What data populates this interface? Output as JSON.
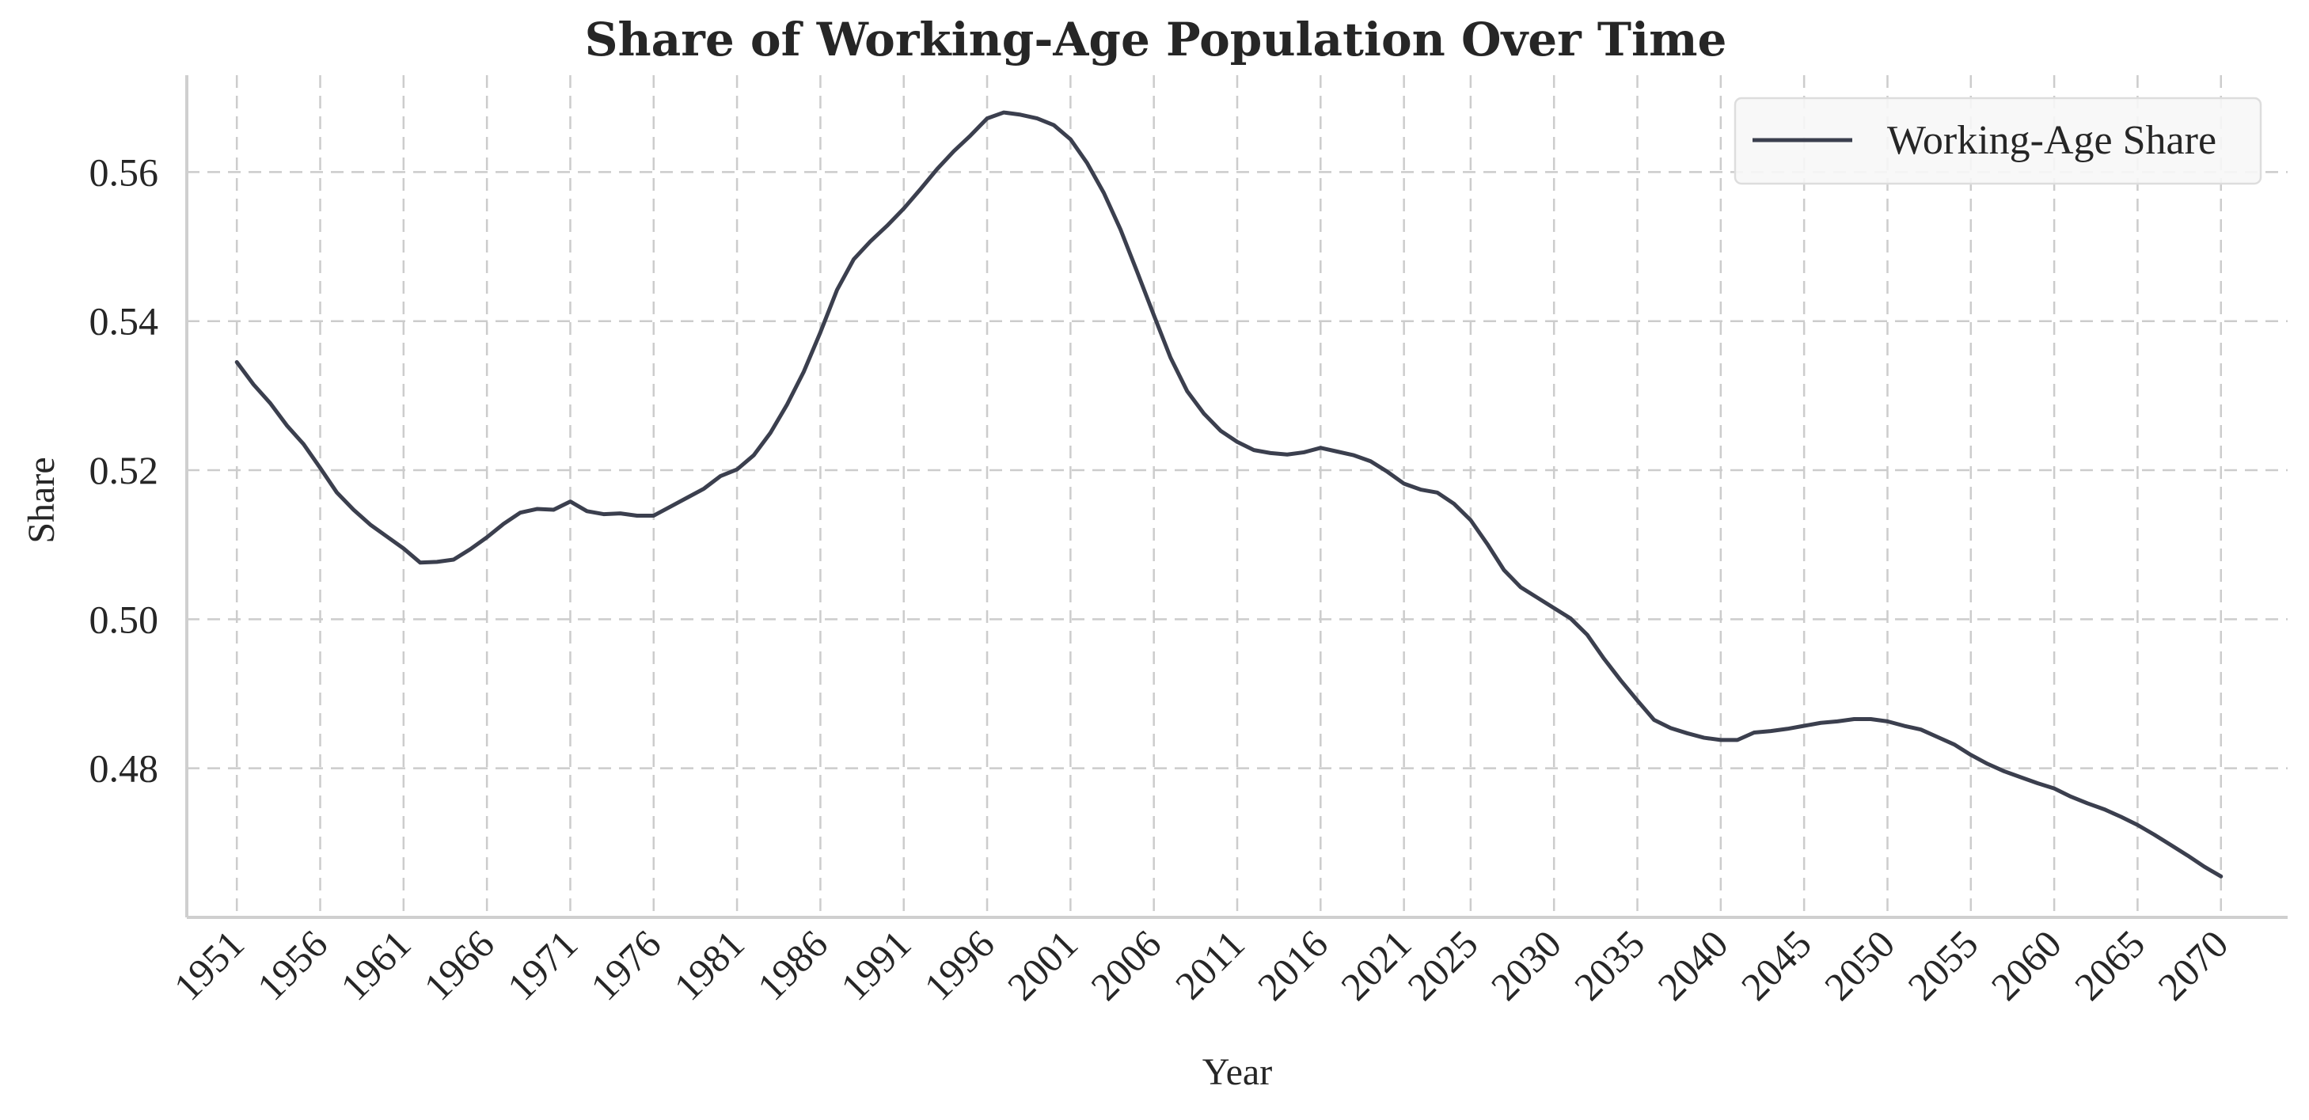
{
  "chart_data": {
    "type": "line",
    "title": "Share of Working-Age Population Over Time",
    "xlabel": "Year",
    "ylabel": "Share",
    "xlim": [
      1948,
      2074
    ],
    "ylim": [
      0.46,
      0.573
    ],
    "grid": true,
    "legend": {
      "position": "top-right"
    },
    "xticks": [
      1951,
      1956,
      1961,
      1966,
      1971,
      1976,
      1981,
      1986,
      1991,
      1996,
      2001,
      2006,
      2011,
      2016,
      2021,
      2025,
      2030,
      2035,
      2040,
      2045,
      2050,
      2055,
      2060,
      2065,
      2070
    ],
    "yticks": [
      0.48,
      0.5,
      0.52,
      0.54,
      0.56
    ],
    "ytick_labels": [
      "0.48",
      "0.50",
      "0.52",
      "0.54",
      "0.56"
    ],
    "series": [
      {
        "name": "Working-Age Share",
        "color": "#3b3f4e",
        "x": [
          1951,
          1952,
          1953,
          1954,
          1955,
          1956,
          1957,
          1958,
          1959,
          1960,
          1961,
          1962,
          1963,
          1964,
          1965,
          1966,
          1967,
          1968,
          1969,
          1970,
          1971,
          1972,
          1973,
          1974,
          1975,
          1976,
          1977,
          1978,
          1979,
          1980,
          1981,
          1982,
          1983,
          1984,
          1985,
          1986,
          1987,
          1988,
          1989,
          1990,
          1991,
          1992,
          1993,
          1994,
          1995,
          1996,
          1997,
          1998,
          1999,
          2000,
          2001,
          2002,
          2003,
          2004,
          2005,
          2006,
          2007,
          2008,
          2009,
          2010,
          2011,
          2012,
          2013,
          2014,
          2015,
          2016,
          2017,
          2018,
          2019,
          2020,
          2021,
          2022,
          2023,
          2024,
          2025,
          2026,
          2027,
          2028,
          2029,
          2030,
          2031,
          2032,
          2033,
          2034,
          2035,
          2036,
          2037,
          2038,
          2039,
          2040,
          2041,
          2042,
          2043,
          2044,
          2045,
          2046,
          2047,
          2048,
          2049,
          2050,
          2051,
          2052,
          2053,
          2054,
          2055,
          2056,
          2057,
          2058,
          2059,
          2060,
          2061,
          2062,
          2063,
          2064,
          2065,
          2066,
          2067,
          2068,
          2069,
          2070
        ],
        "values": [
          0.5345,
          0.5315,
          0.529,
          0.526,
          0.5235,
          0.5203,
          0.517,
          0.5147,
          0.5127,
          0.5111,
          0.5095,
          0.5076,
          0.5077,
          0.508,
          0.5094,
          0.511,
          0.5128,
          0.5143,
          0.5148,
          0.5147,
          0.5158,
          0.5145,
          0.5141,
          0.5142,
          0.5139,
          0.5139,
          0.5151,
          0.5163,
          0.5175,
          0.5192,
          0.5201,
          0.522,
          0.525,
          0.5288,
          0.5332,
          0.5385,
          0.5442,
          0.5483,
          0.5507,
          0.5528,
          0.5551,
          0.5577,
          0.5604,
          0.5628,
          0.5649,
          0.5672,
          0.568,
          0.5677,
          0.5672,
          0.5663,
          0.5644,
          0.5612,
          0.5572,
          0.5523,
          0.5466,
          0.5408,
          0.5351,
          0.5306,
          0.5276,
          0.5253,
          0.5238,
          0.5227,
          0.5223,
          0.5221,
          0.5224,
          0.523,
          0.5225,
          0.522,
          0.5212,
          0.5198,
          0.5182,
          0.5174,
          0.517,
          0.5155,
          0.5133,
          0.5101,
          0.5066,
          0.5043,
          0.5029,
          0.5015,
          0.5001,
          0.4979,
          0.4947,
          0.4918,
          0.4891,
          0.4865,
          0.4854,
          0.4847,
          0.4841,
          0.4838,
          0.4838,
          0.4848,
          0.485,
          0.4853,
          0.4857,
          0.4861,
          0.4863,
          0.4866,
          0.4866,
          0.4863,
          0.4857,
          0.4852,
          0.4842,
          0.4832,
          0.4818,
          0.4806,
          0.4796,
          0.4788,
          0.478,
          0.4773,
          0.4762,
          0.4753,
          0.4745,
          0.4735,
          0.4724,
          0.4711,
          0.4697,
          0.4683,
          0.4668,
          0.4655
        ]
      }
    ]
  }
}
